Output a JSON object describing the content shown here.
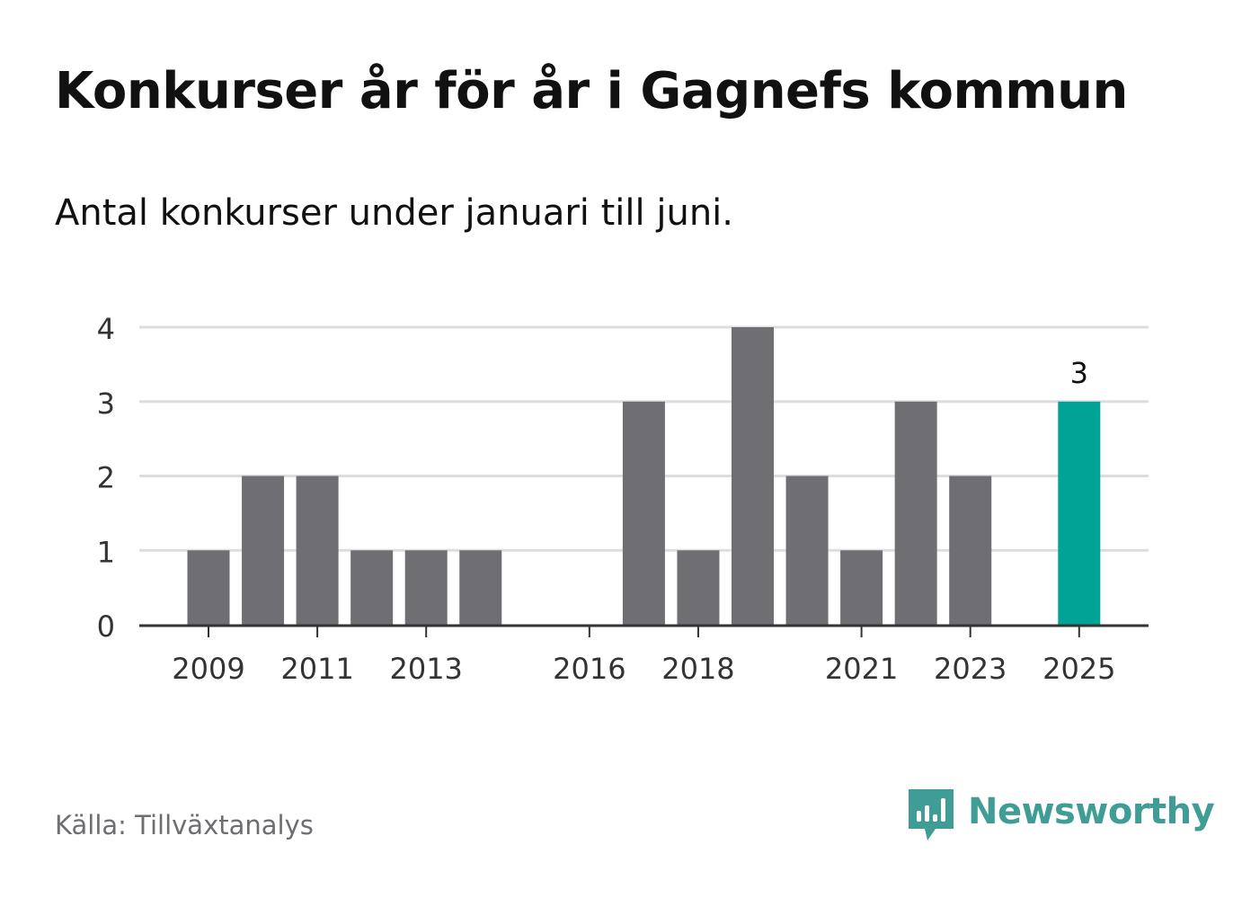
{
  "header": {
    "title": "Konkurser år för år i Gagnefs kommun",
    "subtitle": "Antal konkurser under januari till juni."
  },
  "footer": {
    "source": "Källa: Tillväxtanalys",
    "brand": "Newsworthy",
    "brand_icon": "newsworthy-logo-icon"
  },
  "colors": {
    "bar": "#6f6e73",
    "highlight": "#00a396",
    "grid": "#dddddd",
    "axis": "#333333",
    "brand": "#3f9d95"
  },
  "chart_data": {
    "type": "bar",
    "categories": [
      "2009",
      "2010",
      "2011",
      "2012",
      "2013",
      "2014",
      "2015",
      "2016",
      "2017",
      "2018",
      "2019",
      "2020",
      "2021",
      "2022",
      "2023",
      "2024",
      "2025"
    ],
    "values": [
      1,
      2,
      2,
      1,
      1,
      1,
      0,
      0,
      3,
      1,
      4,
      2,
      1,
      3,
      2,
      0,
      3
    ],
    "x_tick_labels": [
      "2009",
      "2011",
      "2013",
      "2016",
      "2018",
      "2021",
      "2023",
      "2025"
    ],
    "y_ticks": [
      0,
      1,
      2,
      3,
      4
    ],
    "ylim": [
      0,
      4
    ],
    "highlight_category": "2025",
    "value_labels": [
      {
        "category": "2025",
        "text": "3"
      }
    ],
    "grid": true,
    "legend": "none",
    "title": "Konkurser år för år i Gagnefs kommun",
    "subtitle": "Antal konkurser under januari till juni.",
    "xlabel": "",
    "ylabel": ""
  }
}
